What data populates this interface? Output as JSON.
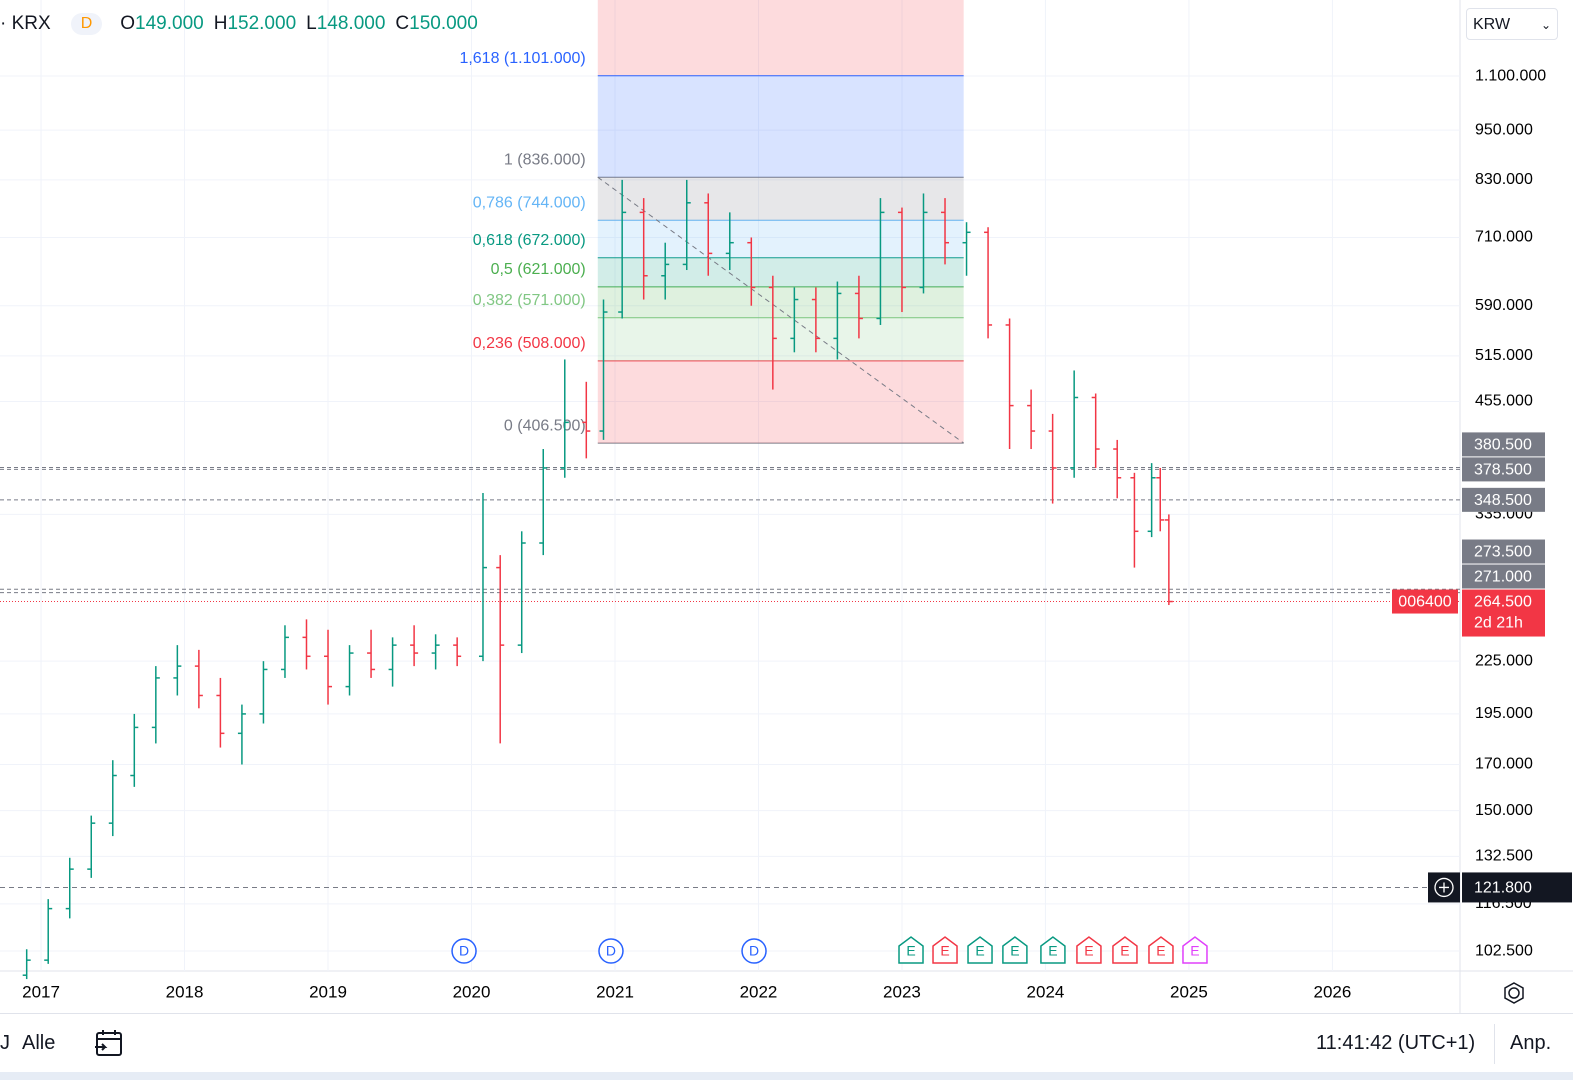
{
  "header": {
    "exchange": "KRX",
    "interval": "D",
    "ohlc": [
      {
        "key": "O",
        "value": "149.000"
      },
      {
        "key": "H",
        "value": "152.000"
      },
      {
        "key": "L",
        "value": "148.000"
      },
      {
        "key": "C",
        "value": "150.000"
      }
    ],
    "currency": "KRW"
  },
  "chart_data": {
    "type": "ohlc",
    "log_scale": true,
    "grid": true,
    "xlim": [
      2016.714,
      2026.889
    ],
    "xticks": [
      2017,
      2018,
      2019,
      2020,
      2021,
      2022,
      2023,
      2024,
      2025,
      2026
    ],
    "ylim": [
      97100,
      1352000
    ],
    "yticks": [
      {
        "value": 1100000,
        "label": "1.100.000"
      },
      {
        "value": 950000,
        "label": "950.000"
      },
      {
        "value": 830000,
        "label": "830.000"
      },
      {
        "value": 710000,
        "label": "710.000"
      },
      {
        "value": 590000,
        "label": "590.000"
      },
      {
        "value": 515000,
        "label": "515.000"
      },
      {
        "value": 455000,
        "label": "455.000"
      },
      {
        "value": 335000,
        "label": "335.000"
      },
      {
        "value": 225000,
        "label": "225.000"
      },
      {
        "value": 195000,
        "label": "195.000"
      },
      {
        "value": 170000,
        "label": "170.000"
      },
      {
        "value": 150000,
        "label": "150.000"
      },
      {
        "value": 132500,
        "label": "132.500"
      },
      {
        "value": 116500,
        "label": "116.500"
      },
      {
        "value": 102500,
        "label": "102.500"
      }
    ],
    "up_color": "#089981",
    "down_color": "#f23645",
    "x": [
      2016.9,
      2017.05,
      2017.2,
      2017.35,
      2017.5,
      2017.65,
      2017.8,
      2017.95,
      2018.1,
      2018.25,
      2018.4,
      2018.55,
      2018.7,
      2018.85,
      2019.0,
      2019.15,
      2019.3,
      2019.45,
      2019.6,
      2019.75,
      2019.9,
      2020.08,
      2020.2,
      2020.35,
      2020.5,
      2020.65,
      2020.8,
      2020.92,
      2021.05,
      2021.2,
      2021.35,
      2021.5,
      2021.65,
      2021.8,
      2021.95,
      2022.1,
      2022.25,
      2022.4,
      2022.55,
      2022.7,
      2022.85,
      2023.0,
      2023.15,
      2023.3,
      2023.45,
      2023.6,
      2023.75,
      2023.9,
      2024.05,
      2024.2,
      2024.35,
      2024.5,
      2024.62,
      2024.74,
      2024.8,
      2024.86
    ],
    "open": [
      96000,
      100000,
      115000,
      128000,
      145000,
      165000,
      188000,
      215000,
      222000,
      205000,
      185000,
      195000,
      220000,
      240000,
      228000,
      210000,
      230000,
      220000,
      235000,
      230000,
      235000,
      228000,
      290000,
      235000,
      310000,
      380000,
      430000,
      420000,
      580000,
      760000,
      640000,
      660000,
      780000,
      680000,
      700000,
      620000,
      540000,
      600000,
      540000,
      610000,
      570000,
      760000,
      620000,
      760000,
      700000,
      720000,
      560000,
      450000,
      420000,
      380000,
      460000,
      400000,
      370000,
      320000,
      370000,
      330000
    ],
    "high": [
      103000,
      118000,
      132000,
      148000,
      172000,
      195000,
      222000,
      235000,
      232000,
      215000,
      200000,
      225000,
      248000,
      252000,
      245000,
      235000,
      245000,
      240000,
      248000,
      242000,
      240000,
      355000,
      300000,
      320000,
      400000,
      510000,
      480000,
      600000,
      830000,
      790000,
      700000,
      830000,
      800000,
      760000,
      710000,
      640000,
      620000,
      620000,
      630000,
      640000,
      790000,
      770000,
      800000,
      790000,
      740000,
      730000,
      570000,
      470000,
      440000,
      495000,
      465000,
      410000,
      375000,
      385000,
      380000,
      335000
    ],
    "low": [
      95000,
      99000,
      112000,
      125000,
      140000,
      160000,
      180000,
      205000,
      198000,
      178000,
      170000,
      190000,
      215000,
      220000,
      200000,
      205000,
      215000,
      210000,
      222000,
      220000,
      222000,
      225000,
      180000,
      230000,
      300000,
      370000,
      390000,
      410000,
      570000,
      600000,
      600000,
      650000,
      640000,
      650000,
      590000,
      470000,
      520000,
      520000,
      510000,
      540000,
      560000,
      580000,
      610000,
      660000,
      640000,
      540000,
      400000,
      400000,
      345000,
      370000,
      380000,
      350000,
      290000,
      315000,
      320000,
      262000
    ],
    "close": [
      100000,
      115000,
      128000,
      145000,
      165000,
      188000,
      215000,
      222000,
      205000,
      185000,
      195000,
      220000,
      240000,
      228000,
      210000,
      230000,
      220000,
      235000,
      230000,
      235000,
      228000,
      290000,
      235000,
      310000,
      380000,
      430000,
      420000,
      580000,
      760000,
      640000,
      660000,
      780000,
      680000,
      700000,
      620000,
      540000,
      600000,
      540000,
      610000,
      570000,
      760000,
      620000,
      760000,
      700000,
      720000,
      560000,
      450000,
      420000,
      380000,
      460000,
      400000,
      370000,
      320000,
      370000,
      330000,
      264500
    ],
    "fib": {
      "x_start": 2020.88,
      "x_end": 2023.43,
      "top_zone_color": "#f23645",
      "levels": [
        {
          "value": 406500,
          "label": "0 (406.500)",
          "color": "#787b86"
        },
        {
          "value": 508000,
          "label": "0,236 (508.000)",
          "color": "#f23645"
        },
        {
          "value": 571000,
          "label": "0,382 (571.000)",
          "color": "#81c784"
        },
        {
          "value": 621000,
          "label": "0,5 (621.000)",
          "color": "#4caf50"
        },
        {
          "value": 672000,
          "label": "0,618 (672.000)",
          "color": "#089981"
        },
        {
          "value": 744000,
          "label": "0,786 (744.000)",
          "color": "#64b5f6"
        },
        {
          "value": 836000,
          "label": "1 (836.000)",
          "color": "#787b86"
        },
        {
          "value": 1101000,
          "label": "1,618 (1.101.000)",
          "color": "#2962ff"
        }
      ]
    },
    "horizontal_lines": [
      {
        "value": 380500,
        "label": "380.500"
      },
      {
        "value": 378500,
        "label": "378.500"
      },
      {
        "value": 348500,
        "label": "348.500"
      },
      {
        "value": 273500,
        "label": "273.500"
      },
      {
        "value": 271000,
        "label": "271.000"
      }
    ],
    "price_line": {
      "value": 264500,
      "label": "264.500",
      "countdown": "2d 21h",
      "symbol": "006400"
    },
    "crosshair": {
      "value": 121800,
      "label": "121.800"
    },
    "events": [
      {
        "x": 2019.948,
        "label": "D",
        "color": "#2962ff"
      },
      {
        "x": 2020.972,
        "label": "D",
        "color": "#2962ff"
      },
      {
        "x": 2021.969,
        "label": "D",
        "color": "#2962ff"
      },
      {
        "x": 2023.063,
        "label": "E",
        "color": "#089981"
      },
      {
        "x": 2023.3,
        "label": "E",
        "color": "#f23645"
      },
      {
        "x": 2023.544,
        "label": "E",
        "color": "#089981"
      },
      {
        "x": 2023.787,
        "label": "E",
        "color": "#089981"
      },
      {
        "x": 2024.052,
        "label": "E",
        "color": "#089981"
      },
      {
        "x": 2024.303,
        "label": "E",
        "color": "#f23645"
      },
      {
        "x": 2024.554,
        "label": "E",
        "color": "#f23645"
      },
      {
        "x": 2024.805,
        "label": "E",
        "color": "#f23645"
      },
      {
        "x": 2025.042,
        "label": "E",
        "color": "#e040fb"
      }
    ]
  },
  "footer": {
    "range_partial": "J",
    "range": "Alle",
    "clock": "11:41:42 (UTC+1)",
    "adjust": "Anp."
  }
}
